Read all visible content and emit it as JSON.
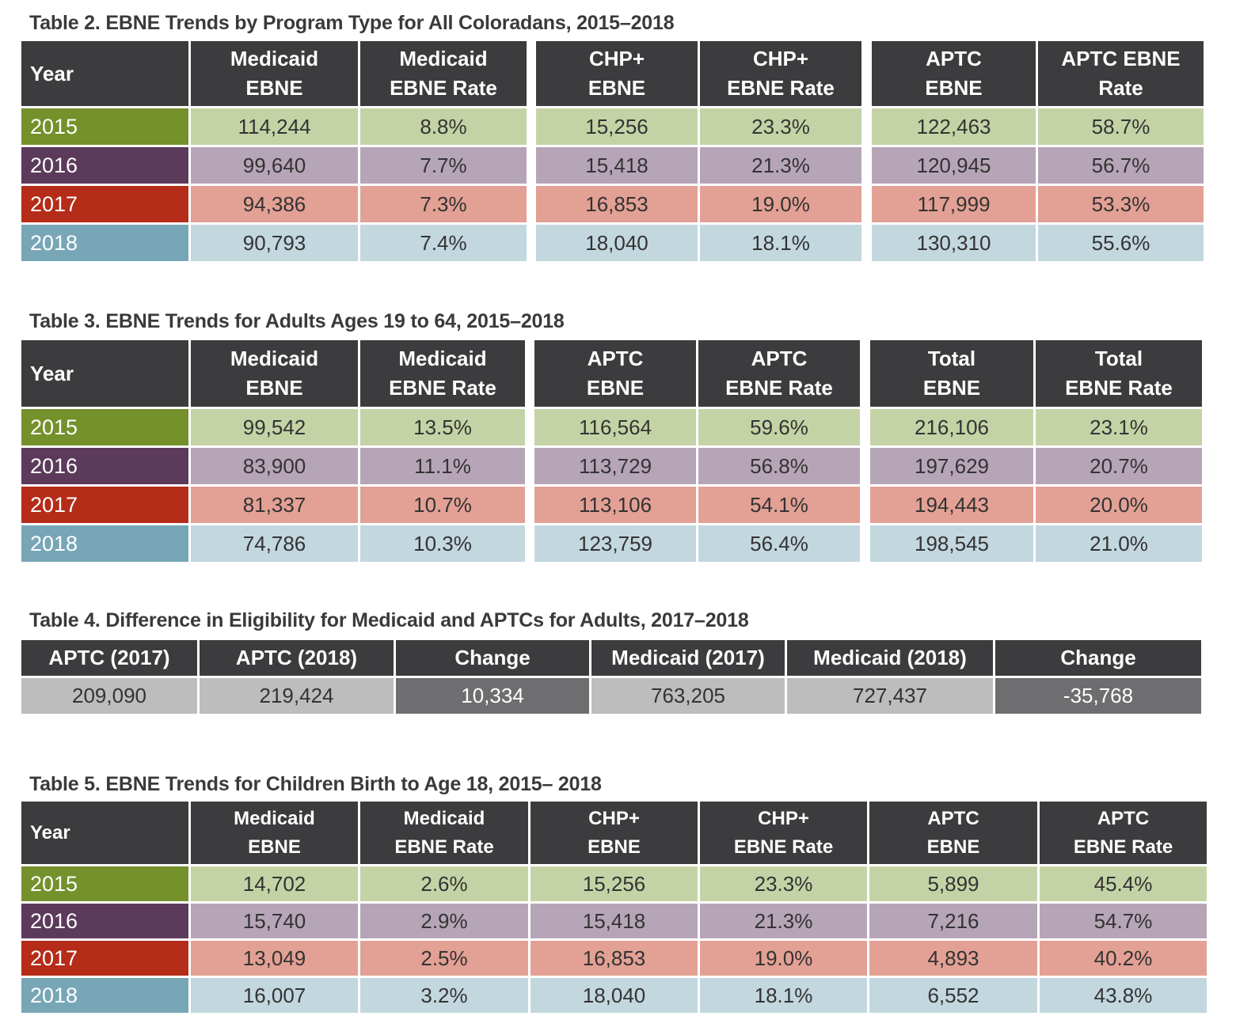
{
  "table2": {
    "title": "Table 2. EBNE Trends by Program Type for All Coloradans, 2015–2018",
    "headers": [
      [
        "Year"
      ],
      [
        "Medicaid",
        "EBNE"
      ],
      [
        "Medicaid",
        "EBNE Rate"
      ],
      [
        "CHP+",
        "EBNE"
      ],
      [
        "CHP+",
        "EBNE Rate"
      ],
      [
        "APTC",
        "EBNE"
      ],
      [
        "APTC EBNE",
        "Rate"
      ]
    ],
    "rows": [
      {
        "year": "2015",
        "values": [
          "114,244",
          "8.8%",
          "15,256",
          "23.3%",
          "122,463",
          "58.7%"
        ]
      },
      {
        "year": "2016",
        "values": [
          "99,640",
          "7.7%",
          "15,418",
          "21.3%",
          "120,945",
          "56.7%"
        ]
      },
      {
        "year": "2017",
        "values": [
          "94,386",
          "7.3%",
          "16,853",
          "19.0%",
          "117,999",
          "53.3%"
        ]
      },
      {
        "year": "2018",
        "values": [
          "90,793",
          "7.4%",
          "18,040",
          "18.1%",
          "130,310",
          "55.6%"
        ]
      }
    ]
  },
  "table3": {
    "title": "Table 3. EBNE Trends for Adults Ages 19 to 64, 2015–2018",
    "headers": [
      [
        "Year"
      ],
      [
        "Medicaid",
        "EBNE"
      ],
      [
        "Medicaid",
        "EBNE Rate"
      ],
      [
        "APTC",
        "EBNE"
      ],
      [
        "APTC",
        "EBNE Rate"
      ],
      [
        "Total",
        "EBNE"
      ],
      [
        "Total",
        "EBNE Rate"
      ]
    ],
    "rows": [
      {
        "year": "2015",
        "values": [
          "99,542",
          "13.5%",
          "116,564",
          "59.6%",
          "216,106",
          "23.1%"
        ]
      },
      {
        "year": "2016",
        "values": [
          "83,900",
          "11.1%",
          "113,729",
          "56.8%",
          "197,629",
          "20.7%"
        ]
      },
      {
        "year": "2017",
        "values": [
          "81,337",
          "10.7%",
          "113,106",
          "54.1%",
          "194,443",
          "20.0%"
        ]
      },
      {
        "year": "2018",
        "values": [
          "74,786",
          "10.3%",
          "123,759",
          "56.4%",
          "198,545",
          "21.0%"
        ]
      }
    ]
  },
  "table4": {
    "title": "Table 4. Difference in Eligibility for Medicaid and APTCs for Adults, 2017–2018",
    "headers": [
      "APTC (2017)",
      "APTC (2018)",
      "Change",
      "Medicaid (2017)",
      "Medicaid (2018)",
      "Change"
    ],
    "values": [
      "209,090",
      "219,424",
      "10,334",
      "763,205",
      "727,437",
      "-35,768"
    ]
  },
  "table5": {
    "title": "Table 5. EBNE Trends for Children Birth to Age 18, 2015– 2018",
    "headers": [
      [
        "Year"
      ],
      [
        "Medicaid",
        "EBNE"
      ],
      [
        "Medicaid",
        "EBNE Rate"
      ],
      [
        "CHP+",
        "EBNE"
      ],
      [
        "CHP+",
        "EBNE Rate"
      ],
      [
        "APTC",
        "EBNE"
      ],
      [
        "APTC",
        "EBNE Rate"
      ]
    ],
    "rows": [
      {
        "year": "2015",
        "values": [
          "14,702",
          "2.6%",
          "15,256",
          "23.3%",
          "5,899",
          "45.4%"
        ]
      },
      {
        "year": "2016",
        "values": [
          "15,740",
          "2.9%",
          "15,418",
          "21.3%",
          "7,216",
          "54.7%"
        ]
      },
      {
        "year": "2017",
        "values": [
          "13,049",
          "2.5%",
          "16,853",
          "19.0%",
          "4,893",
          "40.2%"
        ]
      },
      {
        "year": "2018",
        "values": [
          "16,007",
          "3.2%",
          "18,040",
          "18.1%",
          "6,552",
          "43.8%"
        ]
      }
    ]
  },
  "colors": {
    "header": "#3c3c3e",
    "year_2015": "#74912b",
    "row_2015": "#c4d3a5",
    "year_2016": "#5c3a5b",
    "row_2016": "#b6a5b7",
    "year_2017": "#b52c18",
    "row_2017": "#e3a094",
    "year_2018": "#77a6b7",
    "row_2018": "#c3d7df",
    "table4_value": "#bdbdbd",
    "table4_change": "#6e6e70"
  }
}
